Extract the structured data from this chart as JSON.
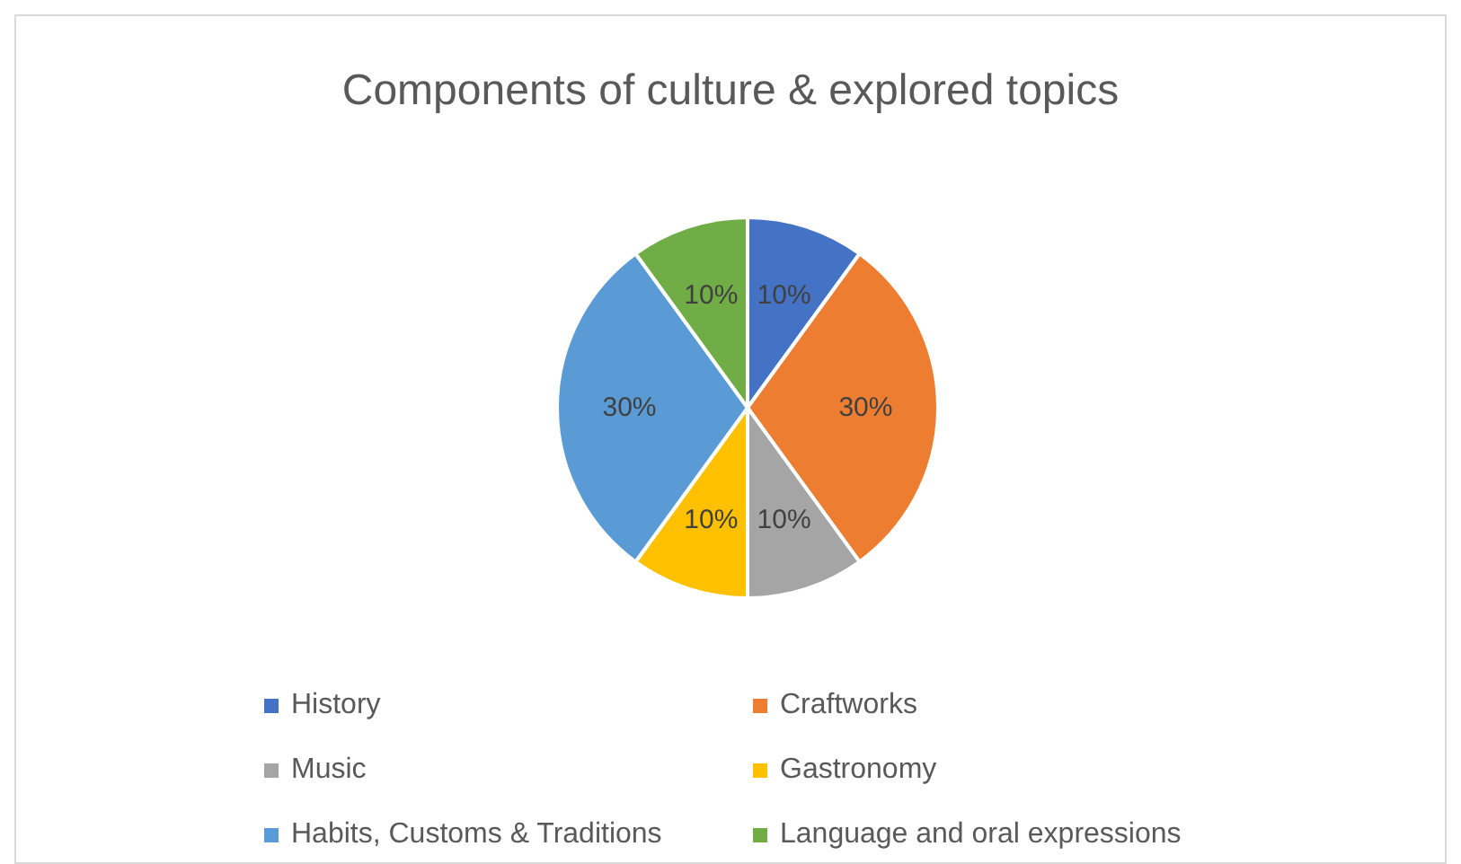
{
  "chart_data": {
    "type": "pie",
    "title": "Components of culture & explored topics",
    "categories": [
      "History",
      "Craftworks",
      "Music",
      "Gastronomy",
      "Habits, Customs & Traditions",
      "Language and oral expressions"
    ],
    "values": [
      10,
      30,
      10,
      10,
      30,
      10
    ],
    "colors": [
      "#4472c4",
      "#ed7d31",
      "#a5a5a5",
      "#ffc000",
      "#5b9bd5",
      "#70ad47"
    ],
    "value_labels": [
      "10%",
      "30%",
      "10%",
      "10%",
      "30%",
      "10%"
    ],
    "legend": "bottom"
  }
}
